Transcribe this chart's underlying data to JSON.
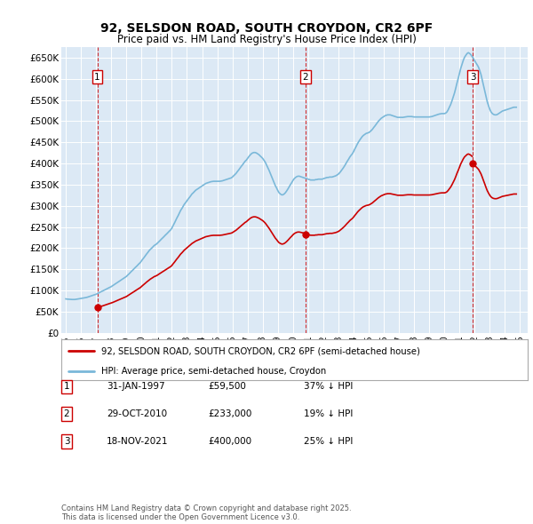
{
  "title": "92, SELSDON ROAD, SOUTH CROYDON, CR2 6PF",
  "subtitle": "Price paid vs. HM Land Registry's House Price Index (HPI)",
  "background_color": "#dce9f5",
  "plot_bg_color": "#dce9f5",
  "ylim": [
    0,
    675000
  ],
  "yticks": [
    0,
    50000,
    100000,
    150000,
    200000,
    250000,
    300000,
    350000,
    400000,
    450000,
    500000,
    550000,
    600000,
    650000
  ],
  "ytick_labels": [
    "£0",
    "£50K",
    "£100K",
    "£150K",
    "£200K",
    "£250K",
    "£300K",
    "£350K",
    "£400K",
    "£450K",
    "£500K",
    "£550K",
    "£600K",
    "£650K"
  ],
  "xlim_start": 1994.7,
  "xlim_end": 2025.5,
  "xticks": [
    1995,
    1996,
    1997,
    1998,
    1999,
    2000,
    2001,
    2002,
    2003,
    2004,
    2005,
    2006,
    2007,
    2008,
    2009,
    2010,
    2011,
    2012,
    2013,
    2014,
    2015,
    2016,
    2017,
    2018,
    2019,
    2020,
    2021,
    2022,
    2023,
    2024,
    2025
  ],
  "sale_dates": [
    1997.08,
    2010.83,
    2021.88
  ],
  "sale_prices": [
    59500,
    233000,
    400000
  ],
  "sale_labels": [
    "1",
    "2",
    "3"
  ],
  "hpi_line_color": "#7ab8d9",
  "sale_line_color": "#cc0000",
  "sale_dot_color": "#cc0000",
  "vline_color": "#cc0000",
  "grid_color": "#ffffff",
  "legend_label_sale": "92, SELSDON ROAD, SOUTH CROYDON, CR2 6PF (semi-detached house)",
  "legend_label_hpi": "HPI: Average price, semi-detached house, Croydon",
  "table_rows": [
    [
      "1",
      "31-JAN-1997",
      "£59,500",
      "37% ↓ HPI"
    ],
    [
      "2",
      "29-OCT-2010",
      "£233,000",
      "19% ↓ HPI"
    ],
    [
      "3",
      "18-NOV-2021",
      "£400,000",
      "25% ↓ HPI"
    ]
  ],
  "footnote": "Contains HM Land Registry data © Crown copyright and database right 2025.\nThis data is licensed under the Open Government Licence v3.0.",
  "hpi_data": [
    [
      1995.0,
      80000
    ],
    [
      1995.08,
      79500
    ],
    [
      1995.17,
      79200
    ],
    [
      1995.25,
      79000
    ],
    [
      1995.33,
      78800
    ],
    [
      1995.42,
      78600
    ],
    [
      1995.5,
      78500
    ],
    [
      1995.58,
      78600
    ],
    [
      1995.67,
      79000
    ],
    [
      1995.75,
      79500
    ],
    [
      1995.83,
      80000
    ],
    [
      1995.92,
      80500
    ],
    [
      1996.0,
      81000
    ],
    [
      1996.08,
      81500
    ],
    [
      1996.17,
      82000
    ],
    [
      1996.25,
      82500
    ],
    [
      1996.33,
      83200
    ],
    [
      1996.42,
      84000
    ],
    [
      1996.5,
      85000
    ],
    [
      1996.58,
      86000
    ],
    [
      1996.67,
      87000
    ],
    [
      1996.75,
      88000
    ],
    [
      1996.83,
      89000
    ],
    [
      1996.92,
      90000
    ],
    [
      1997.0,
      91000
    ],
    [
      1997.08,
      92500
    ],
    [
      1997.17,
      94000
    ],
    [
      1997.25,
      95500
    ],
    [
      1997.33,
      97000
    ],
    [
      1997.42,
      98500
    ],
    [
      1997.5,
      100000
    ],
    [
      1997.58,
      101500
    ],
    [
      1997.67,
      103000
    ],
    [
      1997.75,
      104500
    ],
    [
      1997.83,
      106000
    ],
    [
      1997.92,
      107500
    ],
    [
      1998.0,
      109000
    ],
    [
      1998.08,
      111000
    ],
    [
      1998.17,
      113000
    ],
    [
      1998.25,
      115000
    ],
    [
      1998.33,
      117000
    ],
    [
      1998.42,
      119000
    ],
    [
      1998.5,
      121000
    ],
    [
      1998.58,
      123000
    ],
    [
      1998.67,
      125000
    ],
    [
      1998.75,
      127000
    ],
    [
      1998.83,
      129000
    ],
    [
      1998.92,
      131000
    ],
    [
      1999.0,
      133000
    ],
    [
      1999.08,
      136000
    ],
    [
      1999.17,
      139000
    ],
    [
      1999.25,
      142000
    ],
    [
      1999.33,
      145000
    ],
    [
      1999.42,
      148000
    ],
    [
      1999.5,
      151000
    ],
    [
      1999.58,
      154000
    ],
    [
      1999.67,
      157000
    ],
    [
      1999.75,
      160000
    ],
    [
      1999.83,
      163000
    ],
    [
      1999.92,
      166000
    ],
    [
      2000.0,
      170000
    ],
    [
      2000.08,
      174000
    ],
    [
      2000.17,
      178000
    ],
    [
      2000.25,
      182000
    ],
    [
      2000.33,
      186000
    ],
    [
      2000.42,
      190000
    ],
    [
      2000.5,
      194000
    ],
    [
      2000.58,
      197000
    ],
    [
      2000.67,
      200000
    ],
    [
      2000.75,
      203000
    ],
    [
      2000.83,
      206000
    ],
    [
      2000.92,
      208000
    ],
    [
      2001.0,
      210000
    ],
    [
      2001.08,
      213000
    ],
    [
      2001.17,
      216000
    ],
    [
      2001.25,
      219000
    ],
    [
      2001.33,
      222000
    ],
    [
      2001.42,
      225000
    ],
    [
      2001.5,
      228000
    ],
    [
      2001.58,
      231000
    ],
    [
      2001.67,
      234000
    ],
    [
      2001.75,
      237000
    ],
    [
      2001.83,
      240000
    ],
    [
      2001.92,
      243000
    ],
    [
      2002.0,
      247000
    ],
    [
      2002.08,
      253000
    ],
    [
      2002.17,
      259000
    ],
    [
      2002.25,
      265000
    ],
    [
      2002.33,
      271000
    ],
    [
      2002.42,
      277000
    ],
    [
      2002.5,
      283000
    ],
    [
      2002.58,
      289000
    ],
    [
      2002.67,
      294000
    ],
    [
      2002.75,
      299000
    ],
    [
      2002.83,
      304000
    ],
    [
      2002.92,
      308000
    ],
    [
      2003.0,
      312000
    ],
    [
      2003.08,
      316000
    ],
    [
      2003.17,
      320000
    ],
    [
      2003.25,
      324000
    ],
    [
      2003.33,
      328000
    ],
    [
      2003.42,
      331000
    ],
    [
      2003.5,
      334000
    ],
    [
      2003.58,
      337000
    ],
    [
      2003.67,
      339000
    ],
    [
      2003.75,
      341000
    ],
    [
      2003.83,
      343000
    ],
    [
      2003.92,
      345000
    ],
    [
      2004.0,
      347000
    ],
    [
      2004.08,
      349000
    ],
    [
      2004.17,
      351000
    ],
    [
      2004.25,
      353000
    ],
    [
      2004.33,
      354000
    ],
    [
      2004.42,
      355000
    ],
    [
      2004.5,
      356000
    ],
    [
      2004.58,
      357000
    ],
    [
      2004.67,
      357500
    ],
    [
      2004.75,
      358000
    ],
    [
      2004.83,
      358000
    ],
    [
      2004.92,
      358000
    ],
    [
      2005.0,
      358000
    ],
    [
      2005.08,
      358000
    ],
    [
      2005.17,
      358000
    ],
    [
      2005.25,
      358500
    ],
    [
      2005.33,
      359000
    ],
    [
      2005.42,
      360000
    ],
    [
      2005.5,
      361000
    ],
    [
      2005.58,
      362000
    ],
    [
      2005.67,
      363000
    ],
    [
      2005.75,
      364000
    ],
    [
      2005.83,
      365000
    ],
    [
      2005.92,
      366000
    ],
    [
      2006.0,
      368000
    ],
    [
      2006.08,
      371000
    ],
    [
      2006.17,
      374000
    ],
    [
      2006.25,
      377000
    ],
    [
      2006.33,
      381000
    ],
    [
      2006.42,
      385000
    ],
    [
      2006.5,
      389000
    ],
    [
      2006.58,
      393000
    ],
    [
      2006.67,
      397000
    ],
    [
      2006.75,
      401000
    ],
    [
      2006.83,
      405000
    ],
    [
      2006.92,
      408000
    ],
    [
      2007.0,
      412000
    ],
    [
      2007.08,
      416000
    ],
    [
      2007.17,
      420000
    ],
    [
      2007.25,
      423000
    ],
    [
      2007.33,
      425000
    ],
    [
      2007.42,
      426000
    ],
    [
      2007.5,
      426000
    ],
    [
      2007.58,
      425000
    ],
    [
      2007.67,
      423000
    ],
    [
      2007.75,
      421000
    ],
    [
      2007.83,
      418000
    ],
    [
      2007.92,
      415000
    ],
    [
      2008.0,
      412000
    ],
    [
      2008.08,
      408000
    ],
    [
      2008.17,
      403000
    ],
    [
      2008.25,
      397000
    ],
    [
      2008.33,
      391000
    ],
    [
      2008.42,
      384000
    ],
    [
      2008.5,
      377000
    ],
    [
      2008.58,
      370000
    ],
    [
      2008.67,
      362000
    ],
    [
      2008.75,
      355000
    ],
    [
      2008.83,
      348000
    ],
    [
      2008.92,
      342000
    ],
    [
      2009.0,
      336000
    ],
    [
      2009.08,
      331000
    ],
    [
      2009.17,
      328000
    ],
    [
      2009.25,
      326000
    ],
    [
      2009.33,
      326000
    ],
    [
      2009.42,
      328000
    ],
    [
      2009.5,
      331000
    ],
    [
      2009.58,
      335000
    ],
    [
      2009.67,
      340000
    ],
    [
      2009.75,
      345000
    ],
    [
      2009.83,
      350000
    ],
    [
      2009.92,
      355000
    ],
    [
      2010.0,
      360000
    ],
    [
      2010.08,
      364000
    ],
    [
      2010.17,
      367000
    ],
    [
      2010.25,
      369000
    ],
    [
      2010.33,
      370000
    ],
    [
      2010.42,
      370000
    ],
    [
      2010.5,
      369000
    ],
    [
      2010.58,
      368000
    ],
    [
      2010.67,
      367000
    ],
    [
      2010.75,
      366000
    ],
    [
      2010.83,
      365000
    ],
    [
      2010.92,
      364000
    ],
    [
      2011.0,
      363000
    ],
    [
      2011.08,
      362000
    ],
    [
      2011.17,
      361000
    ],
    [
      2011.25,
      361000
    ],
    [
      2011.33,
      361000
    ],
    [
      2011.42,
      361000
    ],
    [
      2011.5,
      362000
    ],
    [
      2011.58,
      362000
    ],
    [
      2011.67,
      363000
    ],
    [
      2011.75,
      363000
    ],
    [
      2011.83,
      363000
    ],
    [
      2011.92,
      363000
    ],
    [
      2012.0,
      364000
    ],
    [
      2012.08,
      365000
    ],
    [
      2012.17,
      366000
    ],
    [
      2012.25,
      367000
    ],
    [
      2012.33,
      367000
    ],
    [
      2012.42,
      368000
    ],
    [
      2012.5,
      368000
    ],
    [
      2012.58,
      368000
    ],
    [
      2012.67,
      369000
    ],
    [
      2012.75,
      370000
    ],
    [
      2012.83,
      371000
    ],
    [
      2012.92,
      373000
    ],
    [
      2013.0,
      375000
    ],
    [
      2013.08,
      378000
    ],
    [
      2013.17,
      382000
    ],
    [
      2013.25,
      386000
    ],
    [
      2013.33,
      390000
    ],
    [
      2013.42,
      395000
    ],
    [
      2013.5,
      400000
    ],
    [
      2013.58,
      405000
    ],
    [
      2013.67,
      410000
    ],
    [
      2013.75,
      415000
    ],
    [
      2013.83,
      419000
    ],
    [
      2013.92,
      423000
    ],
    [
      2014.0,
      428000
    ],
    [
      2014.08,
      434000
    ],
    [
      2014.17,
      440000
    ],
    [
      2014.25,
      446000
    ],
    [
      2014.33,
      451000
    ],
    [
      2014.42,
      456000
    ],
    [
      2014.5,
      460000
    ],
    [
      2014.58,
      464000
    ],
    [
      2014.67,
      467000
    ],
    [
      2014.75,
      469000
    ],
    [
      2014.83,
      471000
    ],
    [
      2014.92,
      472000
    ],
    [
      2015.0,
      473000
    ],
    [
      2015.08,
      475000
    ],
    [
      2015.17,
      478000
    ],
    [
      2015.25,
      481000
    ],
    [
      2015.33,
      485000
    ],
    [
      2015.42,
      489000
    ],
    [
      2015.5,
      493000
    ],
    [
      2015.58,
      497000
    ],
    [
      2015.67,
      501000
    ],
    [
      2015.75,
      504000
    ],
    [
      2015.83,
      507000
    ],
    [
      2015.92,
      509000
    ],
    [
      2016.0,
      511000
    ],
    [
      2016.08,
      513000
    ],
    [
      2016.17,
      514000
    ],
    [
      2016.25,
      515000
    ],
    [
      2016.33,
      515000
    ],
    [
      2016.42,
      515000
    ],
    [
      2016.5,
      514000
    ],
    [
      2016.58,
      513000
    ],
    [
      2016.67,
      512000
    ],
    [
      2016.75,
      511000
    ],
    [
      2016.83,
      510000
    ],
    [
      2016.92,
      509000
    ],
    [
      2017.0,
      509000
    ],
    [
      2017.08,
      509000
    ],
    [
      2017.17,
      509000
    ],
    [
      2017.25,
      509000
    ],
    [
      2017.33,
      509500
    ],
    [
      2017.42,
      510000
    ],
    [
      2017.5,
      510500
    ],
    [
      2017.58,
      511000
    ],
    [
      2017.67,
      511000
    ],
    [
      2017.75,
      511000
    ],
    [
      2017.83,
      511000
    ],
    [
      2017.92,
      510500
    ],
    [
      2018.0,
      510000
    ],
    [
      2018.08,
      510000
    ],
    [
      2018.17,
      510000
    ],
    [
      2018.25,
      510000
    ],
    [
      2018.33,
      510000
    ],
    [
      2018.42,
      510000
    ],
    [
      2018.5,
      510000
    ],
    [
      2018.58,
      510000
    ],
    [
      2018.67,
      510000
    ],
    [
      2018.75,
      510000
    ],
    [
      2018.83,
      510000
    ],
    [
      2018.92,
      510000
    ],
    [
      2019.0,
      510000
    ],
    [
      2019.08,
      510500
    ],
    [
      2019.17,
      511000
    ],
    [
      2019.25,
      512000
    ],
    [
      2019.33,
      513000
    ],
    [
      2019.42,
      514000
    ],
    [
      2019.5,
      515000
    ],
    [
      2019.58,
      516000
    ],
    [
      2019.67,
      517000
    ],
    [
      2019.75,
      517500
    ],
    [
      2019.83,
      518000
    ],
    [
      2019.92,
      518000
    ],
    [
      2020.0,
      518000
    ],
    [
      2020.08,
      519000
    ],
    [
      2020.17,
      522000
    ],
    [
      2020.25,
      527000
    ],
    [
      2020.33,
      533000
    ],
    [
      2020.42,
      540000
    ],
    [
      2020.5,
      548000
    ],
    [
      2020.58,
      557000
    ],
    [
      2020.67,
      567000
    ],
    [
      2020.75,
      578000
    ],
    [
      2020.83,
      590000
    ],
    [
      2020.92,
      602000
    ],
    [
      2021.0,
      614000
    ],
    [
      2021.08,
      625000
    ],
    [
      2021.17,
      635000
    ],
    [
      2021.25,
      644000
    ],
    [
      2021.33,
      651000
    ],
    [
      2021.42,
      656000
    ],
    [
      2021.5,
      660000
    ],
    [
      2021.58,
      662000
    ],
    [
      2021.67,
      660000
    ],
    [
      2021.75,
      657000
    ],
    [
      2021.83,
      653000
    ],
    [
      2021.92,
      648000
    ],
    [
      2022.0,
      643000
    ],
    [
      2022.08,
      638000
    ],
    [
      2022.17,
      633000
    ],
    [
      2022.25,
      628000
    ],
    [
      2022.33,
      620000
    ],
    [
      2022.42,
      610000
    ],
    [
      2022.5,
      598000
    ],
    [
      2022.58,
      585000
    ],
    [
      2022.67,
      571000
    ],
    [
      2022.75,
      558000
    ],
    [
      2022.83,
      546000
    ],
    [
      2022.92,
      536000
    ],
    [
      2023.0,
      528000
    ],
    [
      2023.08,
      522000
    ],
    [
      2023.17,
      518000
    ],
    [
      2023.25,
      516000
    ],
    [
      2023.33,
      515000
    ],
    [
      2023.42,
      515000
    ],
    [
      2023.5,
      516000
    ],
    [
      2023.58,
      518000
    ],
    [
      2023.67,
      520000
    ],
    [
      2023.75,
      522000
    ],
    [
      2023.83,
      524000
    ],
    [
      2023.92,
      525000
    ],
    [
      2024.0,
      526000
    ],
    [
      2024.08,
      527000
    ],
    [
      2024.17,
      528000
    ],
    [
      2024.25,
      529000
    ],
    [
      2024.33,
      530000
    ],
    [
      2024.42,
      531000
    ],
    [
      2024.5,
      532000
    ],
    [
      2024.58,
      533000
    ],
    [
      2024.67,
      533000
    ],
    [
      2024.75,
      533000
    ]
  ]
}
